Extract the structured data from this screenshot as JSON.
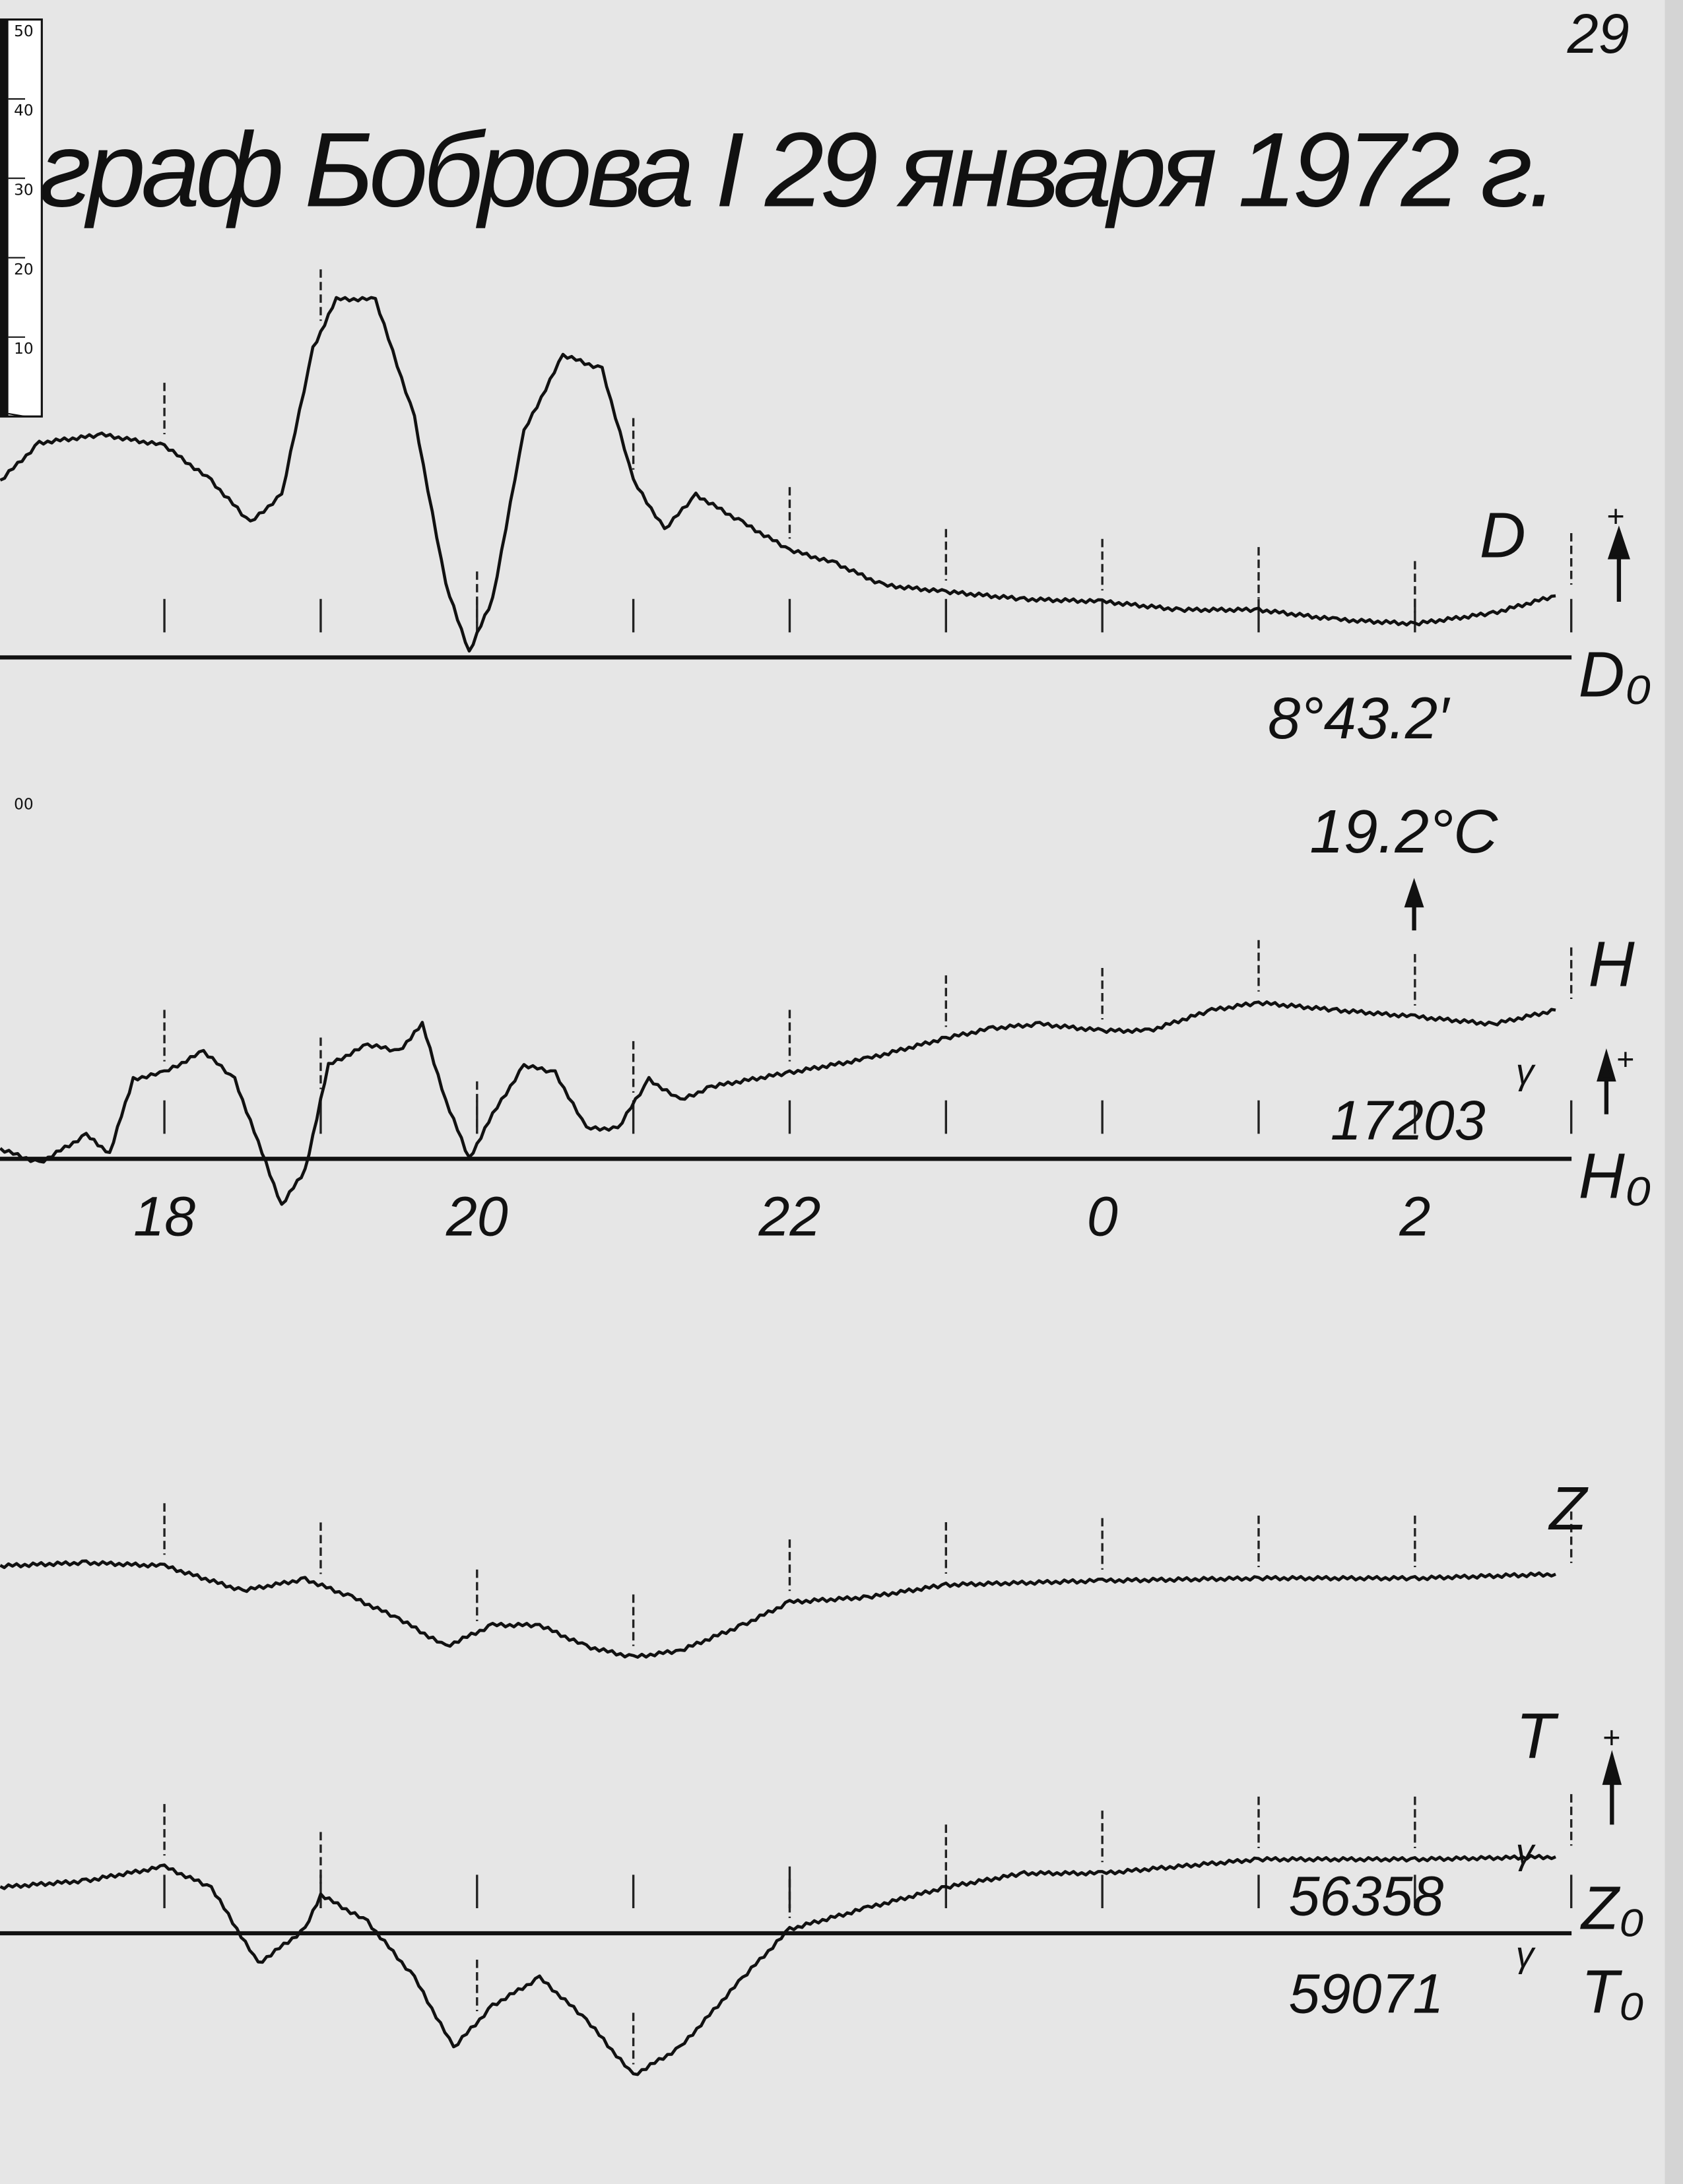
{
  "page_number": "29",
  "title": "граф Боброва I  29 января  1972 г.",
  "ruler": {
    "labels": [
      "50",
      "40",
      "30",
      "20",
      "10",
      "00"
    ],
    "unit": "mm"
  },
  "chart_data": {
    "type": "line",
    "title": "граф Боброва I  29 января  1972 г.",
    "x_unit": "hour",
    "x_ticks": [
      "18",
      "20",
      "22",
      "0",
      "2"
    ],
    "x_range": [
      "16:57",
      "02:54"
    ],
    "y_unit": "mm trace deflection above baseline (estimated from ruler)",
    "grid": false,
    "colors": {
      "trace": "#111111",
      "paper": "#e6e6e6"
    },
    "series": [
      {
        "name": "D",
        "baseline_label": "D₀",
        "baseline_value": "8°43.2′",
        "direction": "+",
        "points": [
          [
            "16:57",
            21.5
          ],
          [
            "17:12",
            26.1
          ],
          [
            "17:36",
            27.1
          ],
          [
            "18:00",
            25.8
          ],
          [
            "18:18",
            21.5
          ],
          [
            "18:33",
            16.4
          ],
          [
            "18:45",
            19.8
          ],
          [
            "18:57",
            37.6
          ],
          [
            "19:06",
            43.6
          ],
          [
            "19:21",
            43.6
          ],
          [
            "19:36",
            29.2
          ],
          [
            "19:48",
            8.8
          ],
          [
            "19:57",
            0.7
          ],
          [
            "20:06",
            7.1
          ],
          [
            "20:18",
            27.5
          ],
          [
            "20:33",
            36.8
          ],
          [
            "20:48",
            35.1
          ],
          [
            "21:00",
            21.5
          ],
          [
            "21:12",
            15.6
          ],
          [
            "21:24",
            19.8
          ],
          [
            "21:42",
            16.4
          ],
          [
            "22:00",
            13.1
          ],
          [
            "22:18",
            11.4
          ],
          [
            "22:36",
            8.8
          ],
          [
            "23:00",
            8.0
          ],
          [
            "23:30",
            7.1
          ],
          [
            "00:00",
            6.8
          ],
          [
            "00:30",
            5.8
          ],
          [
            "01:00",
            5.8
          ],
          [
            "01:30",
            4.6
          ],
          [
            "02:00",
            4.1
          ],
          [
            "02:30",
            5.4
          ],
          [
            "02:54",
            7.5
          ]
        ]
      },
      {
        "name": "H",
        "baseline_label": "H₀",
        "baseline_value": "17203",
        "baseline_unit": "γ",
        "direction": "+",
        "temperature": "19.2°C",
        "points": [
          [
            "16:57",
            1.2
          ],
          [
            "17:12",
            -0.5
          ],
          [
            "17:30",
            2.9
          ],
          [
            "17:39",
            0.7
          ],
          [
            "17:48",
            9.7
          ],
          [
            "18:00",
            10.5
          ],
          [
            "18:15",
            13.1
          ],
          [
            "18:27",
            9.7
          ],
          [
            "18:36",
            2.0
          ],
          [
            "18:45",
            -5.6
          ],
          [
            "18:54",
            -1.4
          ],
          [
            "19:03",
            11.4
          ],
          [
            "19:18",
            13.9
          ],
          [
            "19:30",
            13.1
          ],
          [
            "19:39",
            16.4
          ],
          [
            "19:48",
            7.1
          ],
          [
            "19:57",
            0.0
          ],
          [
            "20:06",
            5.4
          ],
          [
            "20:18",
            11.4
          ],
          [
            "20:30",
            10.5
          ],
          [
            "20:42",
            3.7
          ],
          [
            "20:54",
            3.7
          ],
          [
            "21:06",
            9.7
          ],
          [
            "21:18",
            7.1
          ],
          [
            "21:30",
            8.8
          ],
          [
            "22:00",
            10.5
          ],
          [
            "22:30",
            12.2
          ],
          [
            "23:00",
            14.7
          ],
          [
            "23:18",
            15.9
          ],
          [
            "23:36",
            16.4
          ],
          [
            "00:00",
            15.6
          ],
          [
            "00:18",
            15.6
          ],
          [
            "00:42",
            18.1
          ],
          [
            "01:00",
            19.0
          ],
          [
            "01:30",
            18.1
          ],
          [
            "02:00",
            17.3
          ],
          [
            "02:30",
            16.4
          ],
          [
            "02:54",
            18.1
          ]
        ]
      },
      {
        "name": "Z",
        "baseline_label": "Z₀",
        "baseline_value": "56358",
        "baseline_unit": "γ",
        "points": [
          [
            "16:57",
            44.7
          ],
          [
            "17:30",
            45.1
          ],
          [
            "18:00",
            44.7
          ],
          [
            "18:30",
            41.7
          ],
          [
            "18:54",
            43.1
          ],
          [
            "19:12",
            40.9
          ],
          [
            "19:30",
            38.3
          ],
          [
            "19:48",
            34.9
          ],
          [
            "20:06",
            37.5
          ],
          [
            "20:24",
            37.5
          ],
          [
            "20:42",
            34.9
          ],
          [
            "21:00",
            33.6
          ],
          [
            "21:18",
            34.4
          ],
          [
            "21:42",
            37.5
          ],
          [
            "22:00",
            40.3
          ],
          [
            "22:30",
            40.9
          ],
          [
            "23:00",
            42.4
          ],
          [
            "00:00",
            42.9
          ],
          [
            "01:00",
            43.2
          ],
          [
            "02:00",
            43.2
          ],
          [
            "02:54",
            43.7
          ]
        ]
      },
      {
        "name": "T",
        "baseline_label": "T₀",
        "baseline_value": "59071",
        "baseline_unit": "γ",
        "direction": "+",
        "points": [
          [
            "16:57",
            5.6
          ],
          [
            "17:30",
            6.4
          ],
          [
            "18:00",
            8.1
          ],
          [
            "18:18",
            5.6
          ],
          [
            "18:36",
            -3.7
          ],
          [
            "18:54",
            0.5
          ],
          [
            "19:00",
            4.7
          ],
          [
            "19:18",
            1.4
          ],
          [
            "19:36",
            -5.4
          ],
          [
            "19:51",
            -13.9
          ],
          [
            "20:06",
            -8.8
          ],
          [
            "20:24",
            -5.4
          ],
          [
            "20:42",
            -10.5
          ],
          [
            "21:00",
            -17.3
          ],
          [
            "21:18",
            -13.9
          ],
          [
            "21:42",
            -5.4
          ],
          [
            "22:00",
            0.5
          ],
          [
            "22:30",
            3.1
          ],
          [
            "23:00",
            5.6
          ],
          [
            "23:30",
            7.3
          ],
          [
            "00:00",
            7.3
          ],
          [
            "01:00",
            9.0
          ],
          [
            "02:00",
            9.0
          ],
          [
            "02:54",
            9.3
          ]
        ]
      }
    ]
  }
}
